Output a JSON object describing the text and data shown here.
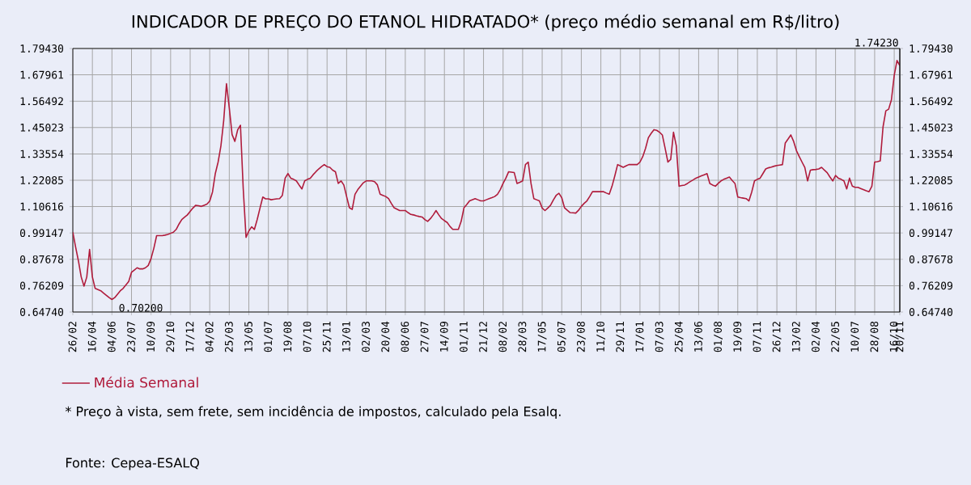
{
  "chart_data": {
    "type": "line",
    "title": "INDICADOR DE PREÇO DO ETANOL HIDRATADO* (preço médio semanal em R$/litro)",
    "categories": [
      "26/02",
      null,
      null,
      null,
      null,
      null,
      null,
      "16/04",
      null,
      null,
      null,
      null,
      null,
      null,
      "04/06",
      null,
      null,
      null,
      null,
      null,
      null,
      "23/07",
      null,
      null,
      null,
      null,
      null,
      null,
      "10/09",
      null,
      null,
      null,
      null,
      null,
      null,
      "29/10",
      null,
      null,
      null,
      null,
      null,
      null,
      "17/12",
      null,
      null,
      null,
      null,
      null,
      null,
      "04/02",
      null,
      null,
      null,
      null,
      null,
      null,
      "25/03",
      null,
      null,
      null,
      null,
      null,
      null,
      "13/05",
      null,
      null,
      null,
      null,
      null,
      null,
      "01/07",
      null,
      null,
      null,
      null,
      null,
      null,
      "19/08",
      null,
      null,
      null,
      null,
      null,
      null,
      "07/10",
      null,
      null,
      null,
      null,
      null,
      null,
      "25/11",
      null,
      null,
      null,
      null,
      null,
      null,
      "13/01",
      null,
      null,
      null,
      null,
      null,
      null,
      "02/03",
      null,
      null,
      null,
      null,
      null,
      null,
      "20/04",
      null,
      null,
      null,
      null,
      null,
      null,
      "08/06",
      null,
      null,
      null,
      null,
      null,
      null,
      "27/07",
      null,
      null,
      null,
      null,
      null,
      null,
      "14/09",
      null,
      null,
      null,
      null,
      null,
      null,
      "01/11",
      null,
      null,
      null,
      null,
      null,
      null,
      "21/12",
      null,
      null,
      null,
      null,
      null,
      null,
      "08/02",
      null,
      null,
      null,
      null,
      null,
      null,
      "28/03",
      null,
      null,
      null,
      null,
      null,
      null,
      "17/05",
      null,
      null,
      null,
      null,
      null,
      null,
      "05/07",
      null,
      null,
      null,
      null,
      null,
      null,
      "23/08",
      null,
      null,
      null,
      null,
      null,
      null,
      "11/10",
      null,
      null,
      null,
      null,
      null,
      null,
      "29/11",
      null,
      null,
      null,
      null,
      null,
      null,
      "17/01",
      null,
      null,
      null,
      null,
      null,
      null,
      "07/03",
      null,
      null,
      null,
      null,
      null,
      null,
      "25/04",
      null,
      null,
      null,
      null,
      null,
      null,
      "13/06",
      null,
      null,
      null,
      null,
      null,
      null,
      "01/08",
      null,
      null,
      null,
      null,
      null,
      null,
      "19/09",
      null,
      null,
      null,
      null,
      null,
      null,
      "07/11",
      null,
      null,
      null,
      null,
      null,
      null,
      "26/12",
      null,
      null,
      null,
      null,
      null,
      null,
      "13/02",
      null,
      null,
      null,
      null,
      null,
      null,
      "02/04",
      null,
      null,
      null,
      null,
      null,
      null,
      "22/05",
      null,
      null,
      null,
      null,
      null,
      null,
      "10/07",
      null,
      null,
      null,
      null,
      null,
      null,
      "28/08",
      null,
      null,
      null,
      null,
      null,
      null,
      "16/10",
      null,
      "20/11"
    ],
    "series": [
      {
        "name": "Média Semanal",
        "color": "#b01c3c",
        "values": [
          0.995,
          0.93,
          0.87,
          0.8,
          0.76,
          0.8,
          0.92,
          0.8,
          0.75,
          0.745,
          0.74,
          0.73,
          0.72,
          0.71,
          0.702,
          0.71,
          0.725,
          0.74,
          0.75,
          0.765,
          0.78,
          0.82,
          0.83,
          0.84,
          0.835,
          0.835,
          0.84,
          0.85,
          0.88,
          0.925,
          0.98,
          0.98,
          0.98,
          0.982,
          0.985,
          0.99,
          0.995,
          1.007,
          1.03,
          1.05,
          1.06,
          1.07,
          1.085,
          1.1,
          1.112,
          1.11,
          1.107,
          1.112,
          1.117,
          1.13,
          1.17,
          1.25,
          1.3,
          1.37,
          1.48,
          1.641,
          1.536,
          1.42,
          1.39,
          1.44,
          1.46,
          1.183,
          0.972,
          1.0,
          1.018,
          1.007,
          1.05,
          1.1,
          1.148,
          1.14,
          1.14,
          1.136,
          1.138,
          1.14,
          1.141,
          1.155,
          1.23,
          1.25,
          1.23,
          1.225,
          1.218,
          1.2,
          1.183,
          1.218,
          1.225,
          1.23,
          1.245,
          1.258,
          1.27,
          1.28,
          1.289,
          1.28,
          1.277,
          1.265,
          1.258,
          1.207,
          1.218,
          1.2,
          1.15,
          1.101,
          1.094,
          1.16,
          1.18,
          1.195,
          1.21,
          1.218,
          1.218,
          1.218,
          1.215,
          1.201,
          1.16,
          1.155,
          1.15,
          1.141,
          1.12,
          1.101,
          1.095,
          1.089,
          1.089,
          1.089,
          1.08,
          1.072,
          1.07,
          1.066,
          1.063,
          1.061,
          1.05,
          1.042,
          1.054,
          1.07,
          1.089,
          1.07,
          1.054,
          1.045,
          1.037,
          1.02,
          1.007,
          1.007,
          1.007,
          1.042,
          1.101,
          1.115,
          1.131,
          1.136,
          1.141,
          1.136,
          1.131,
          1.131,
          1.136,
          1.141,
          1.145,
          1.15,
          1.16,
          1.18,
          1.207,
          1.23,
          1.258,
          1.256,
          1.254,
          1.207,
          1.212,
          1.218,
          1.289,
          1.3,
          1.207,
          1.141,
          1.136,
          1.131,
          1.1,
          1.089,
          1.1,
          1.112,
          1.135,
          1.155,
          1.164,
          1.145,
          1.101,
          1.09,
          1.08,
          1.079,
          1.078,
          1.09,
          1.107,
          1.12,
          1.131,
          1.15,
          1.171,
          1.171,
          1.171,
          1.171,
          1.171,
          1.165,
          1.16,
          1.195,
          1.24,
          1.289,
          1.283,
          1.277,
          1.283,
          1.289,
          1.289,
          1.289,
          1.289,
          1.3,
          1.324,
          1.36,
          1.406,
          1.425,
          1.441,
          1.438,
          1.43,
          1.418,
          1.36,
          1.3,
          1.312,
          1.43,
          1.371,
          1.195,
          1.198,
          1.2,
          1.207,
          1.215,
          1.222,
          1.23,
          1.235,
          1.24,
          1.245,
          1.25,
          1.207,
          1.2,
          1.195,
          1.207,
          1.218,
          1.225,
          1.23,
          1.235,
          1.22,
          1.207,
          1.148,
          1.145,
          1.143,
          1.141,
          1.131,
          1.17,
          1.218,
          1.225,
          1.23,
          1.25,
          1.27,
          1.275,
          1.278,
          1.282,
          1.285,
          1.287,
          1.289,
          1.383,
          1.4,
          1.418,
          1.39,
          1.35,
          1.324,
          1.3,
          1.277,
          1.218,
          1.265,
          1.267,
          1.268,
          1.27,
          1.277,
          1.265,
          1.254,
          1.235,
          1.218,
          1.242,
          1.23,
          1.225,
          1.218,
          1.183,
          1.23,
          1.195,
          1.19,
          1.19,
          1.185,
          1.18,
          1.175,
          1.171,
          1.195,
          1.3,
          1.302,
          1.305,
          1.453,
          1.523,
          1.53,
          1.571,
          1.677,
          1.7423,
          1.72
        ]
      }
    ],
    "ylim": [
      0.6474,
      1.7943
    ],
    "yticks": [
      {
        "value": 0.6474,
        "label": "0.64740"
      },
      {
        "value": 0.76209,
        "label": "0.76209"
      },
      {
        "value": 0.87678,
        "label": "0.87678"
      },
      {
        "value": 0.99147,
        "label": "0.99147"
      },
      {
        "value": 1.10616,
        "label": "1.10616"
      },
      {
        "value": 1.22085,
        "label": "1.22085"
      },
      {
        "value": 1.33554,
        "label": "1.33554"
      },
      {
        "value": 1.45023,
        "label": "1.45023"
      },
      {
        "value": 1.56492,
        "label": "1.56492"
      },
      {
        "value": 1.67961,
        "label": "1.67961"
      },
      {
        "value": 1.7943,
        "label": "1.79430"
      }
    ],
    "y2lim": [
      0.6474,
      1.7943
    ],
    "y2ticks": [
      {
        "value": 0.6474,
        "label": "0.64740"
      },
      {
        "value": 0.76209,
        "label": "0.76209"
      },
      {
        "value": 0.87678,
        "label": "0.87678"
      },
      {
        "value": 0.99147,
        "label": "0.99147"
      },
      {
        "value": 1.10616,
        "label": "1.10616"
      },
      {
        "value": 1.22085,
        "label": "1.22085"
      },
      {
        "value": 1.33554,
        "label": "1.33554"
      },
      {
        "value": 1.45023,
        "label": "1.45023"
      },
      {
        "value": 1.56492,
        "label": "1.56492"
      },
      {
        "value": 1.67961,
        "label": "1.67961"
      },
      {
        "value": 1.7943,
        "label": "1.79430"
      }
    ],
    "annotations": [
      {
        "text": "0.70200",
        "x": "04/06",
        "y": 0.702
      },
      "1.74230",
      "* Preço à vista, sem frete, sem incidência de impostos, calculado pela Esalq.",
      "Fonte: Cepea-ESALQ"
    ],
    "grid": true,
    "legend": "bottom"
  }
}
